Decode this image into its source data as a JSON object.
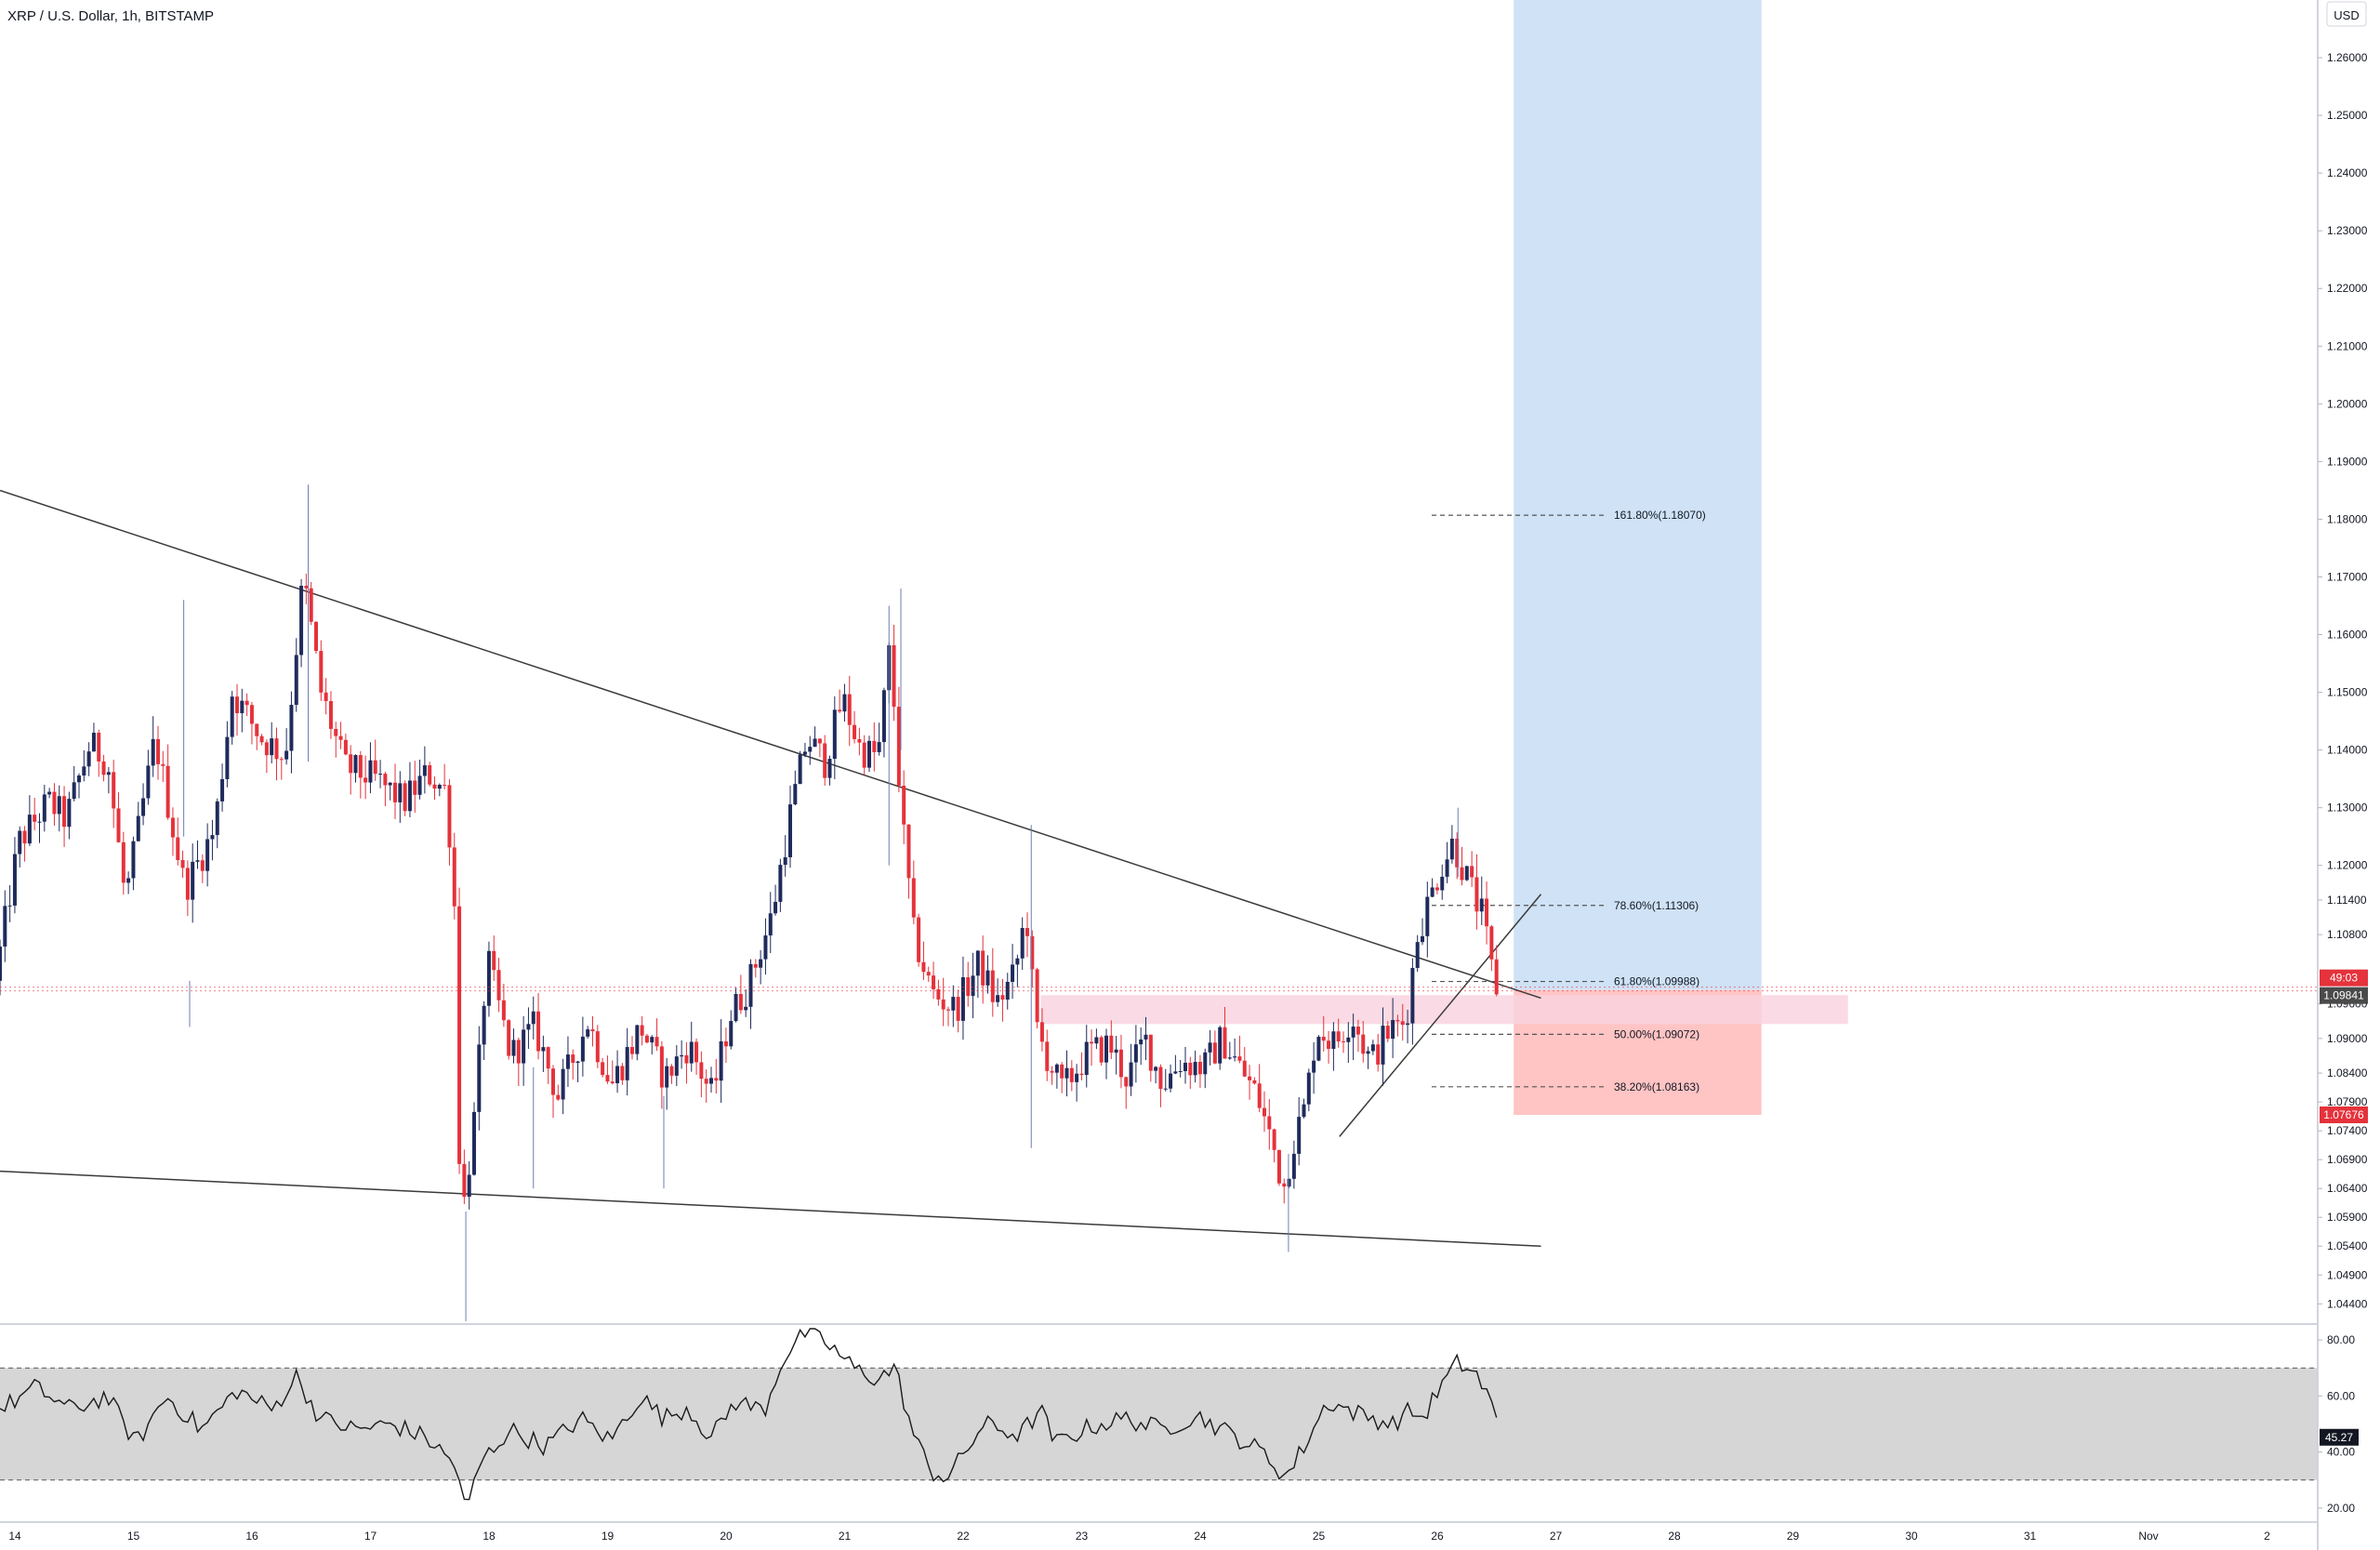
{
  "header": {
    "symbol_title": "XRP / U.S. Dollar, 1h, BITSTAMP",
    "currency": "USD"
  },
  "colors": {
    "bull": "#1f2b5c",
    "bear": "#e5323b",
    "target_zone": "#cfe2f6",
    "stop_zone": "#ffc4c4",
    "supply_zone": "#f9d3df",
    "rsi_band": "#d6d6d6",
    "trendline": "#3a3a3a",
    "price_tag": "#e5323b",
    "current_tag": "#4a4a4a"
  },
  "chart_data": [
    {
      "type": "candlestick",
      "title": "XRP / U.S. Dollar, 1h, BITSTAMP",
      "y_axis": {
        "unit": "USD",
        "range": [
          1.0405,
          1.27
        ],
        "ticks": [
          1.26,
          1.25,
          1.24,
          1.23,
          1.22,
          1.21,
          1.2,
          1.19,
          1.18,
          1.17,
          1.16,
          1.15,
          1.14,
          1.13,
          1.12,
          1.114,
          1.108,
          1.096,
          1.09,
          1.084,
          1.079,
          1.074,
          1.069,
          1.064,
          1.059,
          1.054,
          1.049,
          1.044
        ],
        "tick_labels": [
          "1.26000",
          "1.25000",
          "1.24000",
          "1.23000",
          "1.22000",
          "1.21000",
          "1.20000",
          "1.19000",
          "1.18000",
          "1.17000",
          "1.16000",
          "1.15000",
          "1.14000",
          "1.13000",
          "1.12000",
          "1.11400",
          "1.10800",
          "1.09600",
          "1.09000",
          "1.08400",
          "1.07900",
          "1.07400",
          "1.06900",
          "1.06400",
          "1.05900",
          "1.05400",
          "1.04900",
          "1.04400"
        ]
      },
      "x_axis": {
        "unit": "day (October, then November)",
        "range": [
          14.0,
          27.0
        ],
        "tick_labels": [
          "14",
          "15",
          "16",
          "17",
          "18",
          "19",
          "20",
          "21",
          "22",
          "23",
          "24",
          "25",
          "26",
          "27",
          "28",
          "29",
          "30",
          "31",
          "Nov",
          "2"
        ]
      },
      "current_price": {
        "label": "1.09841",
        "value": 1.09841,
        "countdown": "49:03"
      },
      "stop_price": {
        "label": "1.07676",
        "value": 1.07676
      },
      "candle_keypoints": [
        [
          14.0,
          1.1
        ],
        [
          14.2,
          1.124
        ],
        [
          14.45,
          1.131
        ],
        [
          14.6,
          1.128
        ],
        [
          14.8,
          1.141
        ],
        [
          14.95,
          1.138
        ],
        [
          15.1,
          1.114
        ],
        [
          15.35,
          1.142
        ],
        [
          15.6,
          1.116
        ],
        [
          15.85,
          1.126
        ],
        [
          16.0,
          1.15
        ],
        [
          16.25,
          1.142
        ],
        [
          16.45,
          1.139
        ],
        [
          16.6,
          1.17
        ],
        [
          16.75,
          1.15
        ],
        [
          16.95,
          1.137
        ],
        [
          17.2,
          1.135
        ],
        [
          17.45,
          1.131
        ],
        [
          17.65,
          1.136
        ],
        [
          17.8,
          1.133
        ],
        [
          17.87,
          1.118
        ],
        [
          17.93,
          1.057
        ],
        [
          18.05,
          1.077
        ],
        [
          18.15,
          1.104
        ],
        [
          18.35,
          1.087
        ],
        [
          18.55,
          1.092
        ],
        [
          18.75,
          1.08
        ],
        [
          19.0,
          1.093
        ],
        [
          19.2,
          1.082
        ],
        [
          19.45,
          1.092
        ],
        [
          19.65,
          1.083
        ],
        [
          19.85,
          1.089
        ],
        [
          20.05,
          1.08
        ],
        [
          20.2,
          1.094
        ],
        [
          20.35,
          1.099
        ],
        [
          20.55,
          1.111
        ],
        [
          20.7,
          1.128
        ],
        [
          20.85,
          1.142
        ],
        [
          21.0,
          1.138
        ],
        [
          21.15,
          1.149
        ],
        [
          21.3,
          1.14
        ],
        [
          21.45,
          1.139
        ],
        [
          21.55,
          1.158
        ],
        [
          21.65,
          1.128
        ],
        [
          21.75,
          1.108
        ],
        [
          21.9,
          1.098
        ],
        [
          22.1,
          1.095
        ],
        [
          22.3,
          1.103
        ],
        [
          22.45,
          1.096
        ],
        [
          22.6,
          1.101
        ],
        [
          22.7,
          1.112
        ],
        [
          22.78,
          1.092
        ],
        [
          22.85,
          1.088
        ],
        [
          23.0,
          1.081
        ],
        [
          23.2,
          1.087
        ],
        [
          23.4,
          1.089
        ],
        [
          23.55,
          1.083
        ],
        [
          23.7,
          1.09
        ],
        [
          23.85,
          1.082
        ],
        [
          24.0,
          1.086
        ],
        [
          24.2,
          1.085
        ],
        [
          24.35,
          1.09
        ],
        [
          24.5,
          1.085
        ],
        [
          24.65,
          1.08
        ],
        [
          24.8,
          1.07
        ],
        [
          24.87,
          1.064
        ],
        [
          24.95,
          1.072
        ],
        [
          25.05,
          1.078
        ],
        [
          25.15,
          1.092
        ],
        [
          25.3,
          1.089
        ],
        [
          25.45,
          1.094
        ],
        [
          25.6,
          1.086
        ],
        [
          25.75,
          1.091
        ],
        [
          25.9,
          1.093
        ],
        [
          26.0,
          1.108
        ],
        [
          26.1,
          1.114
        ],
        [
          26.2,
          1.12
        ],
        [
          26.3,
          1.124
        ],
        [
          26.45,
          1.116
        ],
        [
          26.55,
          1.111
        ],
        [
          26.65,
          1.099
        ]
      ],
      "trendlines": [
        {
          "from": [
            14.0,
            1.185
          ],
          "to": [
            27.0,
            1.097
          ]
        },
        {
          "from": [
            14.0,
            1.067
          ],
          "to": [
            27.0,
            1.054
          ]
        },
        {
          "from": [
            25.3,
            1.073
          ],
          "to": [
            27.0,
            1.115
          ]
        }
      ],
      "fibonacci": [
        {
          "label": "161.80%(1.18070)",
          "value": 1.1807
        },
        {
          "label": "78.60%(1.11306)",
          "value": 1.11306
        },
        {
          "label": "61.80%(1.09988)",
          "value": 1.09988
        },
        {
          "label": "50.00%(1.09072)",
          "value": 1.09072
        },
        {
          "label": "38.20%(1.08163)",
          "value": 1.08163
        }
      ],
      "position": {
        "entry": 1.09841,
        "target": 1.27,
        "stop": 1.07676,
        "start_x": 26.77,
        "end_x": 28.86
      },
      "supply_zone": {
        "from_x": 22.78,
        "to_x": 29.59,
        "low": 1.0925,
        "high": 1.0975
      }
    },
    {
      "type": "line",
      "title": "",
      "y_axis": {
        "range": [
          15,
          85
        ],
        "ticks": [
          80,
          60,
          40,
          20
        ],
        "tick_labels": [
          "80.00",
          "60.00",
          "40.00",
          "20.00"
        ]
      },
      "band": [
        30,
        70
      ],
      "current_value": {
        "label": "45.27",
        "value": 45.27
      },
      "rsi_keypoints": [
        [
          14.0,
          55
        ],
        [
          14.3,
          63
        ],
        [
          14.6,
          55
        ],
        [
          14.9,
          60
        ],
        [
          15.15,
          43
        ],
        [
          15.4,
          60
        ],
        [
          15.7,
          48
        ],
        [
          16.0,
          62
        ],
        [
          16.3,
          55
        ],
        [
          16.5,
          67
        ],
        [
          16.7,
          52
        ],
        [
          17.0,
          48
        ],
        [
          17.3,
          50
        ],
        [
          17.6,
          45
        ],
        [
          17.85,
          35
        ],
        [
          17.93,
          18
        ],
        [
          18.05,
          36
        ],
        [
          18.3,
          48
        ],
        [
          18.6,
          42
        ],
        [
          18.9,
          52
        ],
        [
          19.15,
          44
        ],
        [
          19.4,
          60
        ],
        [
          19.6,
          52
        ],
        [
          19.8,
          56
        ],
        [
          20.0,
          45
        ],
        [
          20.2,
          58
        ],
        [
          20.45,
          55
        ],
        [
          20.6,
          73
        ],
        [
          20.8,
          83
        ],
        [
          21.0,
          78
        ],
        [
          21.2,
          70
        ],
        [
          21.4,
          66
        ],
        [
          21.55,
          70
        ],
        [
          21.7,
          47
        ],
        [
          21.85,
          33
        ],
        [
          22.0,
          31
        ],
        [
          22.3,
          50
        ],
        [
          22.6,
          46
        ],
        [
          22.78,
          55
        ],
        [
          22.9,
          43
        ],
        [
          23.2,
          49
        ],
        [
          23.5,
          52
        ],
        [
          23.8,
          48
        ],
        [
          24.1,
          53
        ],
        [
          24.4,
          46
        ],
        [
          24.65,
          40
        ],
        [
          24.85,
          31
        ],
        [
          25.0,
          42
        ],
        [
          25.2,
          58
        ],
        [
          25.5,
          53
        ],
        [
          25.75,
          50
        ],
        [
          25.9,
          55
        ],
        [
          26.0,
          52
        ],
        [
          26.15,
          63
        ],
        [
          26.3,
          72
        ],
        [
          26.45,
          68
        ],
        [
          26.6,
          56
        ],
        [
          26.65,
          45
        ]
      ]
    }
  ]
}
